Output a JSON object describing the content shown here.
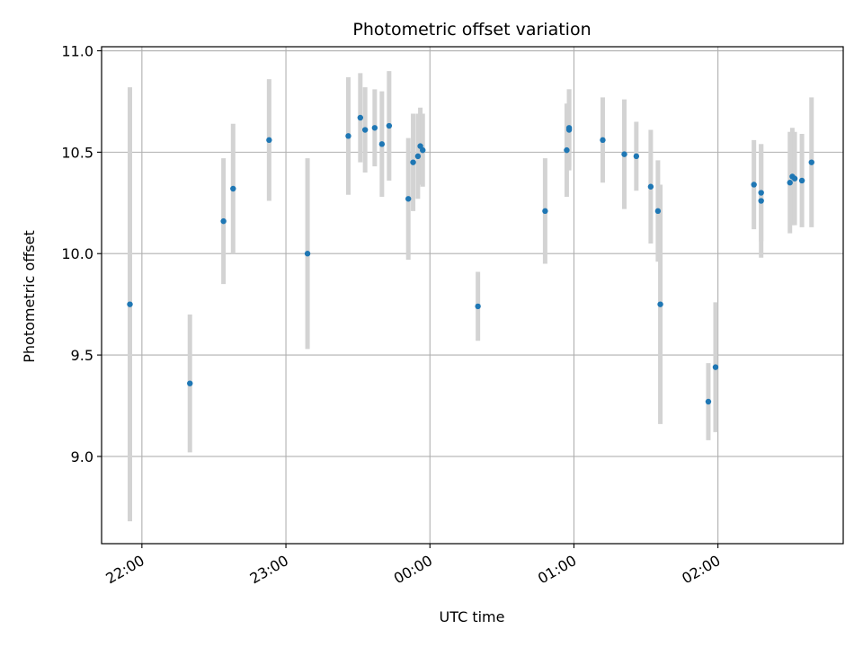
{
  "chart_data": {
    "type": "scatter",
    "title": "Photometric offset variation",
    "xlabel": "UTC time",
    "ylabel": "Photometric offset",
    "x_tick_labels": [
      "22:00",
      "23:00",
      "00:00",
      "01:00",
      "02:00"
    ],
    "y_tick_labels": [
      "9.0",
      "9.5",
      "10.0",
      "10.5",
      "11.0"
    ],
    "x_ticks_hours": [
      22,
      23,
      24,
      25,
      26
    ],
    "y_ticks": [
      9.0,
      9.5,
      10.0,
      10.5,
      11.0
    ],
    "xlim_hours": [
      21.72,
      26.87
    ],
    "ylim": [
      8.57,
      11.02
    ],
    "grid": true,
    "colors": {
      "points": "#1f77b4",
      "errorbars": "#d3d3d3",
      "grid": "#b0b0b0"
    },
    "points": [
      {
        "t": "21:55",
        "y": 9.75,
        "err": 1.07
      },
      {
        "t": "22:20",
        "y": 9.36,
        "err": 0.34
      },
      {
        "t": "22:34",
        "y": 10.16,
        "err": 0.31
      },
      {
        "t": "22:38",
        "y": 10.32,
        "err": 0.32
      },
      {
        "t": "22:53",
        "y": 10.56,
        "err": 0.3
      },
      {
        "t": "23:09",
        "y": 10.0,
        "err": 0.47
      },
      {
        "t": "23:26",
        "y": 10.58,
        "err": 0.29
      },
      {
        "t": "23:31",
        "y": 10.67,
        "err": 0.22
      },
      {
        "t": "23:33",
        "y": 10.61,
        "err": 0.21
      },
      {
        "t": "23:37",
        "y": 10.62,
        "err": 0.19
      },
      {
        "t": "23:40",
        "y": 10.54,
        "err": 0.26
      },
      {
        "t": "23:43",
        "y": 10.63,
        "err": 0.27
      },
      {
        "t": "23:51",
        "y": 10.27,
        "err": 0.3
      },
      {
        "t": "23:53",
        "y": 10.45,
        "err": 0.24
      },
      {
        "t": "23:55",
        "y": 10.48,
        "err": 0.21
      },
      {
        "t": "23:56",
        "y": 10.53,
        "err": 0.19
      },
      {
        "t": "23:57",
        "y": 10.51,
        "err": 0.18
      },
      {
        "t": "00:20",
        "y": 9.74,
        "err": 0.17
      },
      {
        "t": "00:48",
        "y": 10.21,
        "err": 0.26
      },
      {
        "t": "00:57",
        "y": 10.51,
        "err": 0.23
      },
      {
        "t": "00:58",
        "y": 10.62,
        "err": 0.19
      },
      {
        "t": "00:58",
        "y": 10.61,
        "err": 0.2
      },
      {
        "t": "01:12",
        "y": 10.56,
        "err": 0.21
      },
      {
        "t": "01:21",
        "y": 10.49,
        "err": 0.27
      },
      {
        "t": "01:26",
        "y": 10.48,
        "err": 0.17
      },
      {
        "t": "01:32",
        "y": 10.33,
        "err": 0.28
      },
      {
        "t": "01:35",
        "y": 10.21,
        "err": 0.25
      },
      {
        "t": "01:36",
        "y": 9.75,
        "err": 0.59
      },
      {
        "t": "01:56",
        "y": 9.27,
        "err": 0.19
      },
      {
        "t": "01:59",
        "y": 9.44,
        "err": 0.32
      },
      {
        "t": "02:15",
        "y": 10.34,
        "err": 0.22
      },
      {
        "t": "02:18",
        "y": 10.3,
        "err": 0.24
      },
      {
        "t": "02:18",
        "y": 10.26,
        "err": 0.28
      },
      {
        "t": "02:30",
        "y": 10.35,
        "err": 0.25
      },
      {
        "t": "02:31",
        "y": 10.38,
        "err": 0.24
      },
      {
        "t": "02:32",
        "y": 10.37,
        "err": 0.23
      },
      {
        "t": "02:35",
        "y": 10.36,
        "err": 0.23
      },
      {
        "t": "02:39",
        "y": 10.45,
        "err": 0.32
      }
    ]
  }
}
